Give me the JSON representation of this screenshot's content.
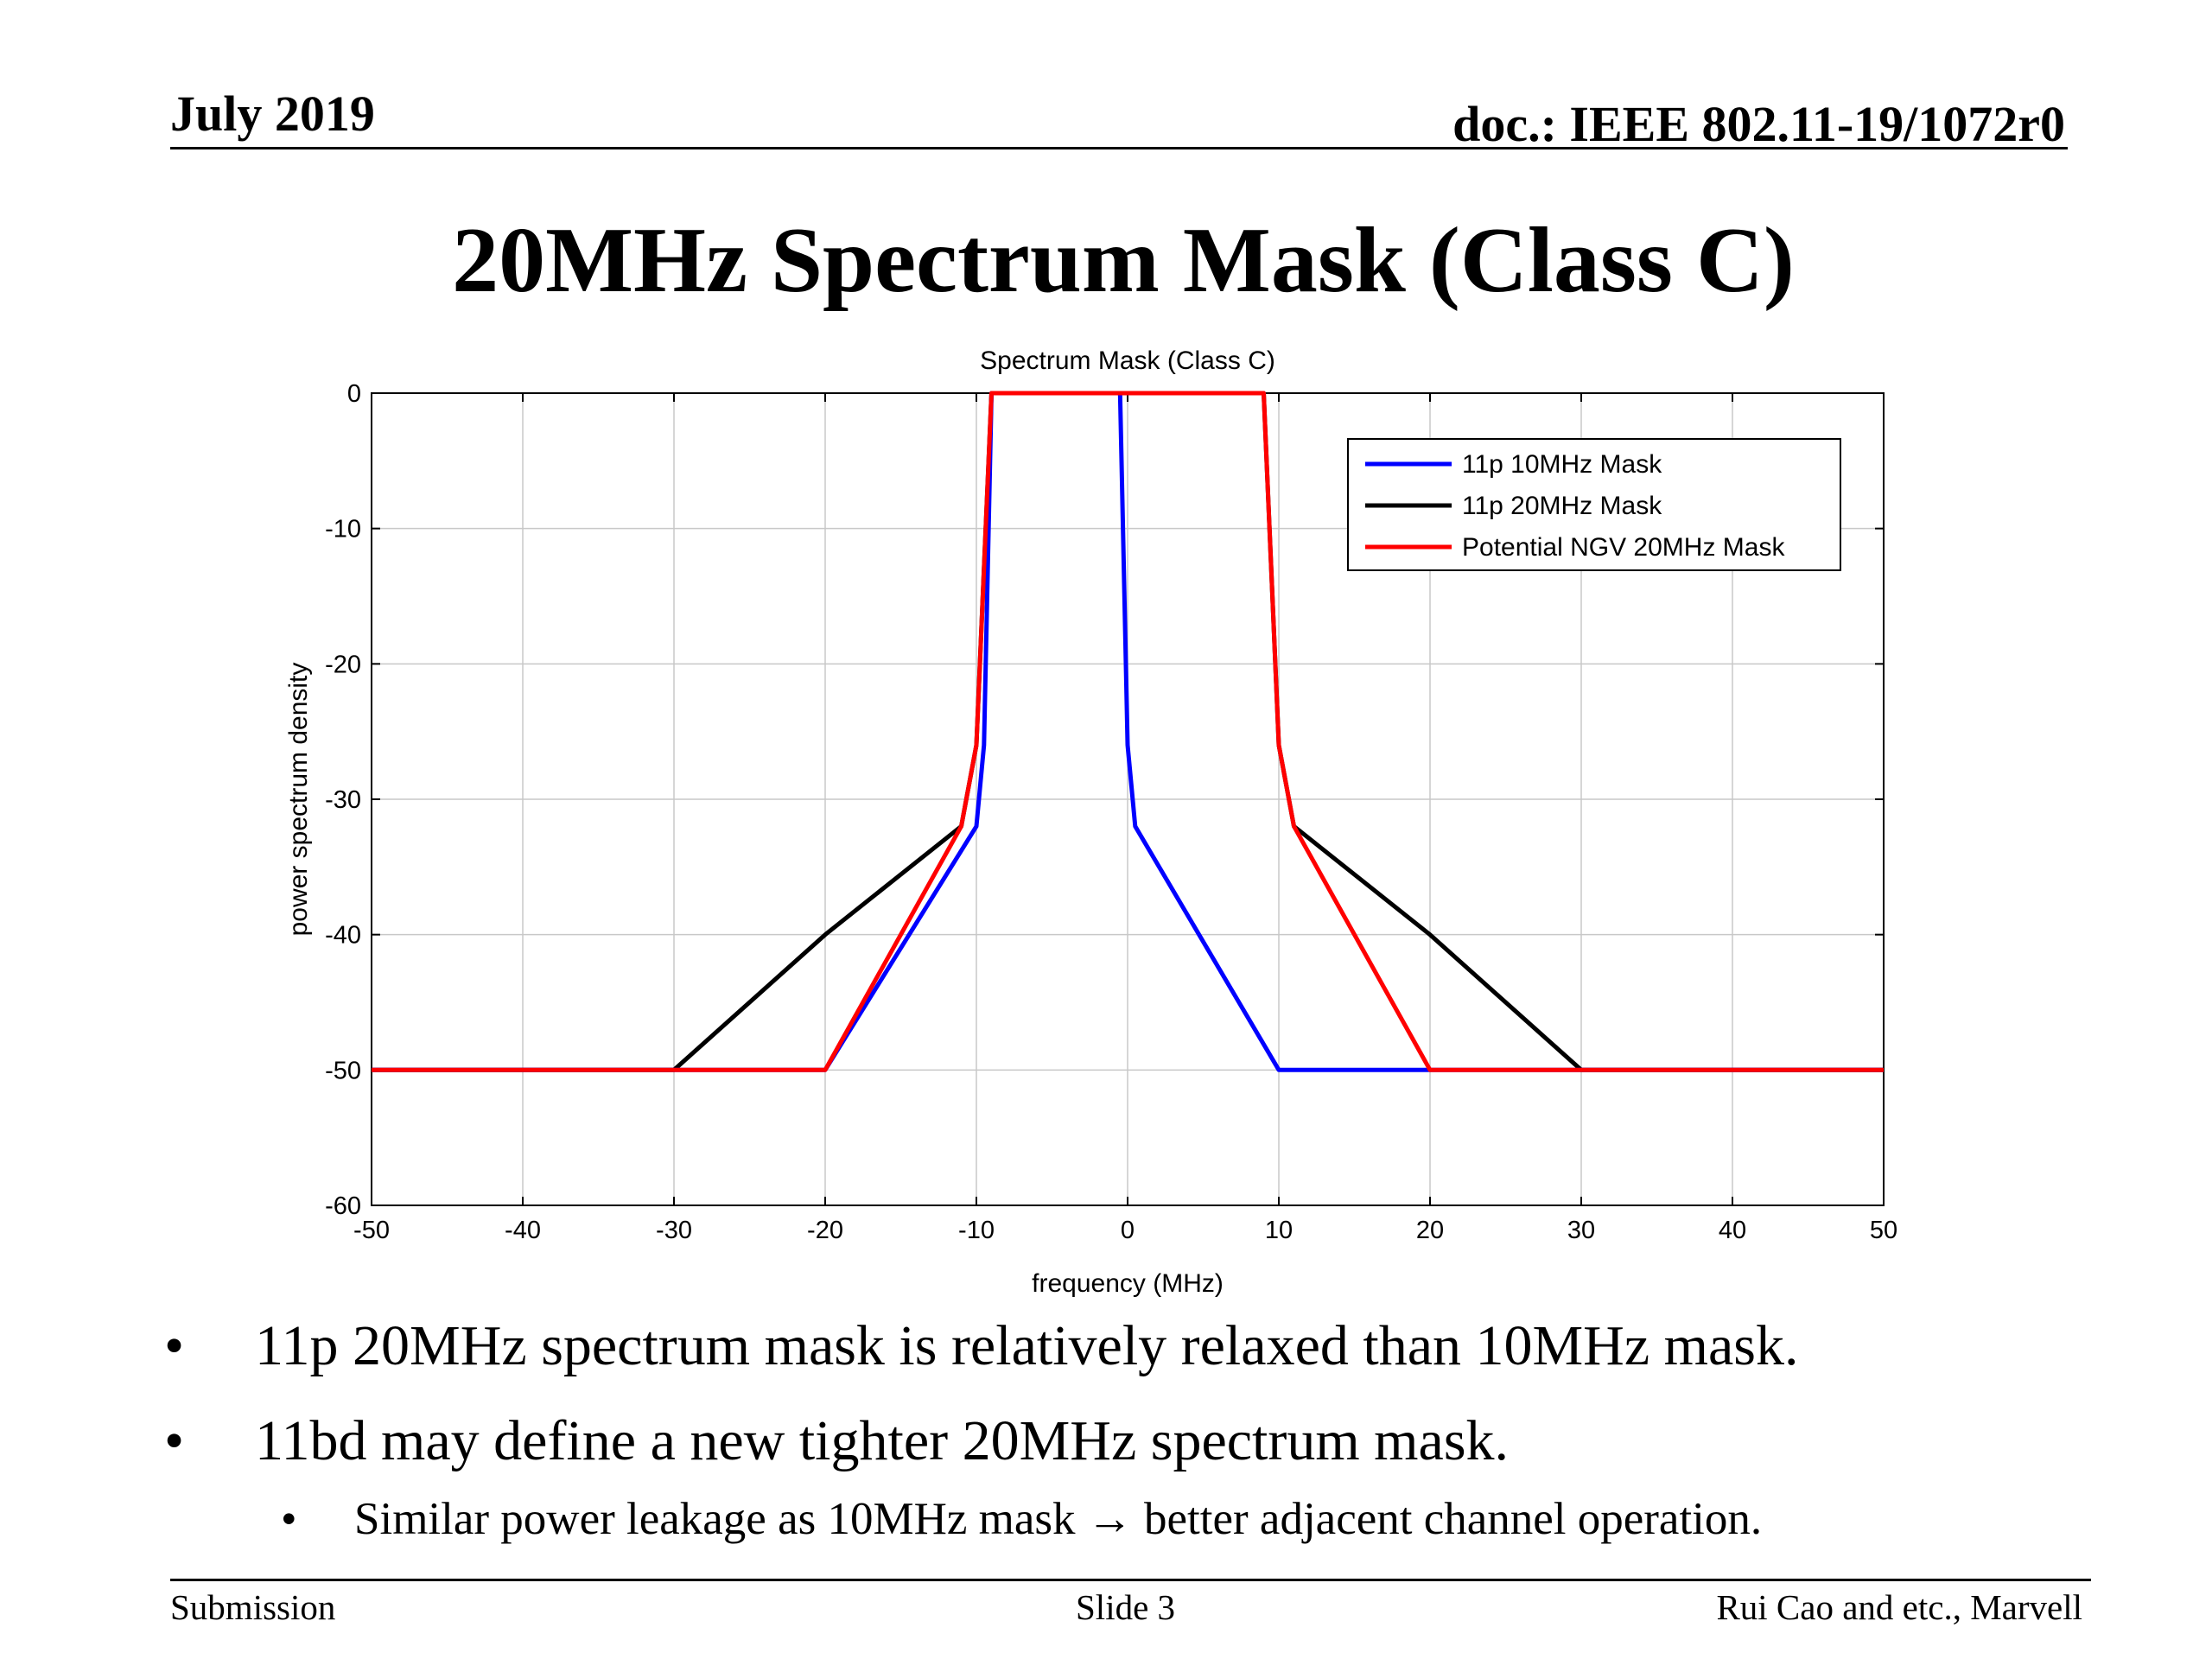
{
  "header": {
    "date": "July 2019",
    "doc": "doc.: IEEE 802.11-19/1072r0"
  },
  "slide_title": "20MHz Spectrum Mask (Class C)",
  "bullets": [
    "11p 20MHz spectrum mask is relatively relaxed than 10MHz mask.",
    "11bd may define a new tighter 20MHz spectrum mask."
  ],
  "sub_bullets": [
    "Similar power leakage as 10MHz mask → better adjacent channel operation."
  ],
  "bullet_glyph": "•",
  "footer": {
    "left": "Submission",
    "center": "Slide 3",
    "right": "Rui Cao and etc., Marvell"
  },
  "chart_data": {
    "type": "line",
    "title": "Spectrum Mask (Class C)",
    "xlabel": "frequency (MHz)",
    "ylabel": "power spectrum density",
    "xlim": [
      -50,
      50
    ],
    "ylim": [
      -60,
      0
    ],
    "xticks": [
      -50,
      -40,
      -30,
      -20,
      -10,
      0,
      10,
      20,
      30,
      40,
      50
    ],
    "yticks": [
      0,
      -10,
      -20,
      -30,
      -40,
      -50,
      -60
    ],
    "grid": true,
    "legend_position": "top-right",
    "series": [
      {
        "name": "11p 10MHz Mask",
        "color": "#0000ff",
        "x": [
          -50,
          -20,
          -10,
          -9.5,
          -9,
          -0.5,
          0,
          0.5,
          10,
          50
        ],
        "y": [
          -50,
          -50,
          -32,
          -26,
          0,
          0,
          -26,
          -32,
          -50,
          -50
        ]
      },
      {
        "name": "11p 20MHz Mask",
        "color": "#000000",
        "x": [
          -50,
          -30,
          -20,
          -11,
          -10,
          -9,
          9,
          10,
          11,
          20,
          30,
          50
        ],
        "y": [
          -50,
          -50,
          -40,
          -32,
          -26,
          0,
          0,
          -26,
          -32,
          -40,
          -50,
          -50
        ]
      },
      {
        "name": "Potential NGV 20MHz Mask",
        "color": "#ff0000",
        "x": [
          -50,
          -20,
          -11,
          -10,
          -9,
          9,
          10,
          11,
          20,
          50
        ],
        "y": [
          -50,
          -50,
          -32,
          -26,
          0,
          0,
          -26,
          -32,
          -50,
          -50
        ]
      }
    ]
  }
}
